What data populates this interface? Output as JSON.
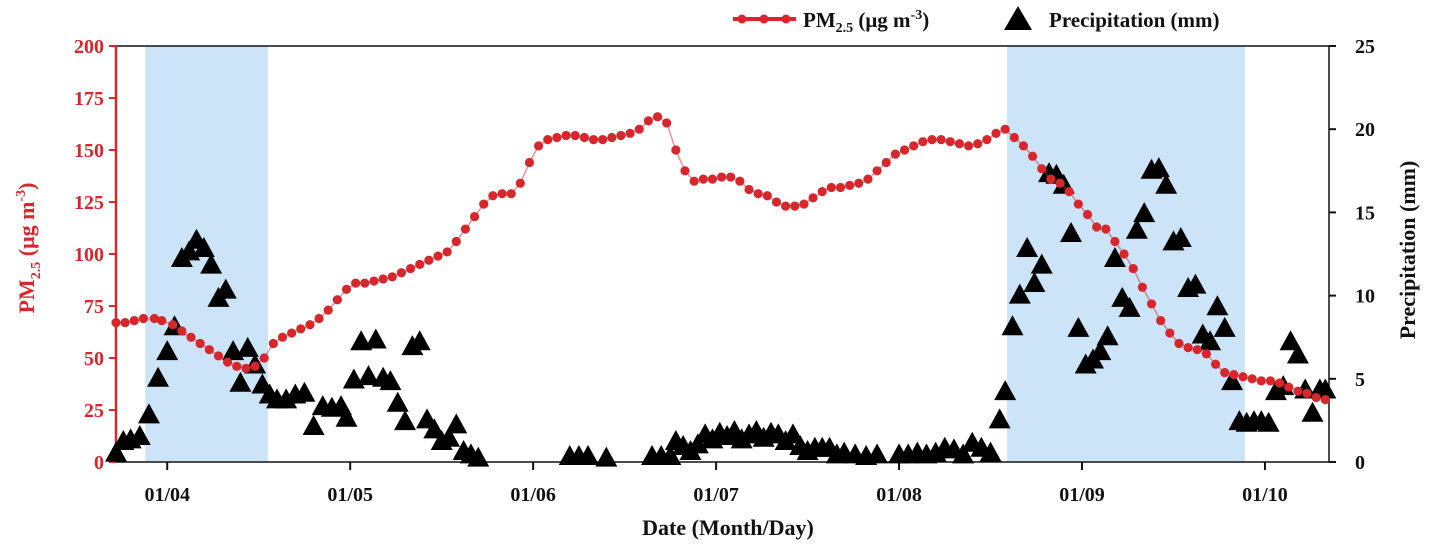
{
  "chart_data": {
    "type": "line",
    "xlabel": "Date (Month/Day)",
    "x_ticks": [
      "01/04",
      "01/05",
      "01/06",
      "01/07",
      "01/08",
      "01/09",
      "01/10"
    ],
    "xlim": [
      "01/03 17:00",
      "01/10 08:00"
    ],
    "ylabel_left": {
      "main": "PM",
      "sub": "2.5",
      "unit_pre": " (μg m",
      "sup": "-3",
      "unit_post": ")"
    },
    "ylim_left": [
      0,
      200
    ],
    "yticks_left": [
      0,
      25,
      50,
      75,
      100,
      125,
      150,
      175,
      200
    ],
    "ylabel_right": "Precipitation (mm)",
    "ylim_right": [
      0,
      25
    ],
    "yticks_right": [
      0,
      5,
      10,
      15,
      20,
      25
    ],
    "legend": {
      "position": "top-right",
      "pm_label": {
        "main": "PM",
        "sub": "2.5",
        "unit_pre": " (μg m",
        "sup": "-3",
        "unit_post": ")"
      },
      "precip_label": "Precipitation (mm)"
    },
    "shaded_periods": [
      {
        "start": 3.88,
        "end": 4.55
      },
      {
        "start": 8.59,
        "end": 9.89
      }
    ],
    "colors": {
      "pm": "#d7262c",
      "precip": "#000000",
      "shade": "#a9d2f2"
    },
    "series": [
      {
        "name": "PM2.5 (μg m-3)",
        "axis": "left",
        "x": [
          3.72,
          3.77,
          3.82,
          3.87,
          3.93,
          3.97,
          4.03,
          4.08,
          4.13,
          4.18,
          4.23,
          4.28,
          4.33,
          4.38,
          4.43,
          4.48,
          4.53,
          4.58,
          4.63,
          4.68,
          4.73,
          4.78,
          4.83,
          4.88,
          4.93,
          4.98,
          5.03,
          5.08,
          5.13,
          5.18,
          5.23,
          5.28,
          5.33,
          5.38,
          5.43,
          5.48,
          5.53,
          5.58,
          5.63,
          5.68,
          5.73,
          5.78,
          5.83,
          5.88,
          5.93,
          5.98,
          6.03,
          6.08,
          6.13,
          6.18,
          6.23,
          6.28,
          6.33,
          6.38,
          6.43,
          6.48,
          6.53,
          6.58,
          6.63,
          6.68,
          6.73,
          6.78,
          6.83,
          6.88,
          6.93,
          6.98,
          7.03,
          7.08,
          7.13,
          7.18,
          7.23,
          7.28,
          7.33,
          7.38,
          7.43,
          7.48,
          7.53,
          7.58,
          7.63,
          7.68,
          7.73,
          7.78,
          7.83,
          7.88,
          7.93,
          7.98,
          8.03,
          8.08,
          8.13,
          8.18,
          8.23,
          8.28,
          8.33,
          8.38,
          8.43,
          8.48,
          8.53,
          8.58,
          8.63,
          8.68,
          8.73,
          8.78,
          8.83,
          8.88,
          8.93,
          8.98,
          9.03,
          9.08,
          9.13,
          9.18,
          9.23,
          9.28,
          9.33,
          9.38,
          9.43,
          9.48,
          9.53,
          9.58,
          9.63,
          9.68,
          9.73,
          9.78,
          9.83,
          9.88,
          9.93,
          9.98,
          10.03,
          10.08,
          10.13,
          10.18,
          10.23,
          10.28,
          10.33
        ],
        "values": [
          67,
          67,
          68,
          69,
          69,
          68,
          66,
          63,
          60,
          57,
          54,
          51,
          48,
          46,
          45,
          46,
          50,
          57,
          60,
          62,
          64,
          66,
          69,
          73,
          78,
          83,
          86,
          86,
          87,
          88,
          89,
          91,
          93,
          95,
          97,
          99,
          101,
          106,
          112,
          118,
          124,
          128,
          129,
          129,
          134,
          144,
          152,
          155,
          156,
          157,
          157,
          156,
          155,
          155,
          156,
          157,
          158,
          160,
          164,
          166,
          163,
          150,
          140,
          135,
          136,
          136,
          137,
          137,
          135,
          131,
          129,
          128,
          125,
          123,
          123,
          124,
          127,
          130,
          132,
          132,
          133,
          134,
          136,
          140,
          144,
          148,
          150,
          152,
          154,
          155,
          155,
          154,
          153,
          152,
          153,
          155,
          158,
          160,
          156,
          152,
          147,
          141,
          136,
          134,
          130,
          124,
          119,
          113,
          112,
          106,
          100,
          93,
          84,
          76,
          68,
          62,
          57,
          55,
          54,
          52,
          47,
          43,
          42,
          41,
          40,
          39,
          39,
          38,
          36,
          34,
          33,
          31,
          30
        ]
      },
      {
        "name": "Precipitation (mm)",
        "axis": "right",
        "x": [
          3.72,
          3.76,
          3.8,
          3.85,
          3.9,
          3.95,
          4.0,
          4.04,
          4.08,
          4.12,
          4.16,
          4.2,
          4.24,
          4.28,
          4.32,
          4.36,
          4.4,
          4.44,
          4.48,
          4.52,
          4.56,
          4.6,
          4.65,
          4.7,
          4.75,
          4.8,
          4.85,
          4.9,
          4.95,
          4.98,
          5.02,
          5.06,
          5.1,
          5.14,
          5.18,
          5.22,
          5.26,
          5.3,
          5.34,
          5.38,
          5.42,
          5.46,
          5.5,
          5.54,
          5.58,
          5.62,
          5.66,
          5.7,
          6.2,
          6.25,
          6.3,
          6.4,
          6.65,
          6.7,
          6.75,
          6.78,
          6.82,
          6.86,
          6.9,
          6.94,
          6.98,
          7.02,
          7.06,
          7.1,
          7.14,
          7.18,
          7.22,
          7.26,
          7.3,
          7.34,
          7.38,
          7.42,
          7.46,
          7.5,
          7.54,
          7.58,
          7.62,
          7.66,
          7.7,
          7.76,
          7.82,
          7.88,
          8.0,
          8.05,
          8.1,
          8.15,
          8.2,
          8.25,
          8.3,
          8.35,
          8.4,
          8.45,
          8.5,
          8.55,
          8.58,
          8.62,
          8.66,
          8.7,
          8.74,
          8.78,
          8.82,
          8.86,
          8.9,
          8.94,
          8.98,
          9.02,
          9.06,
          9.1,
          9.14,
          9.18,
          9.22,
          9.26,
          9.3,
          9.34,
          9.38,
          9.42,
          9.46,
          9.5,
          9.54,
          9.58,
          9.62,
          9.66,
          9.7,
          9.74,
          9.78,
          9.82,
          9.86,
          9.9,
          9.94,
          9.98,
          10.02,
          10.06,
          10.1,
          10.14,
          10.18,
          10.22,
          10.26,
          10.3,
          10.33
        ],
        "values": [
          0.5,
          1.2,
          1.3,
          1.5,
          2.8,
          5.0,
          6.6,
          8.1,
          12.2,
          12.6,
          13.3,
          12.8,
          11.8,
          9.8,
          10.3,
          6.6,
          4.7,
          6.8,
          5.8,
          4.6,
          4.0,
          3.7,
          3.7,
          4.0,
          4.1,
          2.1,
          3.3,
          3.2,
          3.3,
          2.6,
          4.9,
          7.2,
          5.1,
          7.3,
          5.0,
          4.8,
          3.5,
          2.4,
          6.9,
          7.2,
          2.5,
          1.9,
          1.2,
          1.4,
          2.2,
          0.6,
          0.4,
          0.2,
          0.3,
          0.3,
          0.3,
          0.2,
          0.3,
          0.3,
          0.3,
          1.2,
          0.9,
          0.6,
          1.0,
          1.6,
          1.3,
          1.7,
          1.5,
          1.8,
          1.3,
          1.6,
          1.8,
          1.4,
          1.7,
          1.6,
          1.2,
          1.6,
          0.9,
          0.6,
          0.8,
          0.8,
          0.8,
          0.4,
          0.5,
          0.4,
          0.3,
          0.4,
          0.4,
          0.4,
          0.5,
          0.4,
          0.5,
          0.8,
          0.7,
          0.4,
          1.1,
          0.8,
          0.5,
          2.5,
          4.2,
          8.1,
          10.0,
          12.8,
          10.7,
          11.8,
          17.3,
          17.2,
          16.6,
          13.7,
          8.0,
          5.8,
          6.1,
          6.6,
          7.5,
          12.2,
          9.8,
          9.2,
          13.9,
          14.9,
          17.5,
          17.6,
          16.6,
          13.2,
          13.4,
          10.4,
          10.6,
          7.6,
          7.2,
          9.3,
          8.0,
          4.8,
          2.4,
          2.3,
          2.4,
          2.4,
          2.3,
          4.2,
          4.5,
          7.2,
          6.4,
          4.3,
          2.9,
          4.3,
          4.3
        ]
      }
    ]
  }
}
